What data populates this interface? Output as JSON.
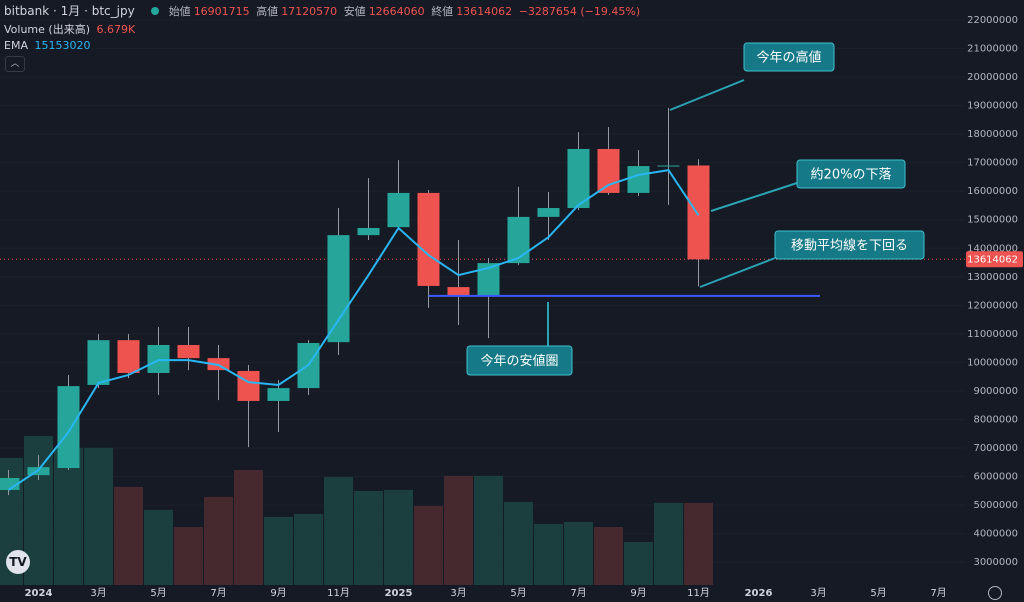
{
  "header": {
    "symbol": "bitbank · 1月 · btc_jpy",
    "open_label": "始値",
    "open": "16901715",
    "high_label": "高値",
    "high": "17120570",
    "low_label": "安値",
    "low": "12664060",
    "close_label": "終値",
    "close": "13614062",
    "change": "−3287654 (−19.45%)",
    "volume_label": "Volume (出来高)",
    "volume": "6.679K",
    "ema_label": "EMA",
    "ema": "15153020"
  },
  "chart_data": {
    "type": "candlestick",
    "categories": [
      null,
      "2024",
      null,
      "3月",
      null,
      "5月",
      null,
      "7月",
      null,
      "9月",
      null,
      "11月",
      null,
      "2025",
      null,
      "3月",
      null,
      "5月",
      null,
      "7月",
      null,
      "9月",
      null,
      "11月",
      null,
      "2026",
      null,
      "3月",
      null,
      "5月",
      null,
      "7月"
    ],
    "open": [
      5530000,
      6050000,
      6300000,
      9210000,
      10780000,
      9630000,
      10610000,
      10150000,
      9700000,
      8650000,
      9100000,
      10710000,
      14460000,
      14740000,
      15940000,
      12640000,
      12360000,
      13480000,
      15100000,
      15410000,
      17480000,
      15940000,
      16880000,
      16901715,
      null,
      null,
      null,
      null,
      null,
      null,
      null,
      null
    ],
    "high": [
      6230000,
      6750000,
      9560000,
      10990000,
      10990000,
      11240000,
      11240000,
      10610000,
      9910000,
      9380000,
      10780000,
      15410000,
      16460000,
      17090000,
      16040000,
      14290000,
      13660000,
      16150000,
      15970000,
      18070000,
      18250000,
      17440000,
      18920000,
      17120570,
      null,
      null,
      null,
      null,
      null,
      null,
      null,
      null
    ],
    "low": [
      5350000,
      5880000,
      6230000,
      9100000,
      9450000,
      8860000,
      9730000,
      8680000,
      7030000,
      7560000,
      8860000,
      10260000,
      14290000,
      14640000,
      11910000,
      11310000,
      10850000,
      13410000,
      14290000,
      15340000,
      15870000,
      15830000,
      15520000,
      12664060,
      null,
      null,
      null,
      null,
      null,
      null,
      null,
      null
    ],
    "close": [
      5950000,
      6330000,
      9170000,
      10780000,
      9630000,
      10610000,
      10150000,
      9730000,
      8650000,
      9100000,
      10680000,
      14460000,
      14710000,
      15940000,
      12680000,
      12360000,
      13480000,
      15100000,
      15410000,
      17480000,
      15940000,
      16880000,
      16900000,
      13614062,
      null,
      null,
      null,
      null,
      null,
      null,
      null,
      null
    ],
    "up_color": "#26a69a",
    "down_color": "#ef5350",
    "ema": {
      "name": "EMA",
      "color": "#29b6f6",
      "values": [
        5530000,
        6230000,
        7560000,
        9280000,
        9560000,
        10080000,
        10080000,
        9910000,
        9310000,
        9210000,
        9910000,
        11490000,
        13060000,
        14710000,
        13760000,
        13060000,
        13310000,
        13660000,
        14390000,
        15520000,
        16220000,
        16570000,
        16740000,
        15153020,
        null,
        null,
        null,
        null,
        null,
        null,
        null,
        null
      ]
    },
    "volume": {
      "name": "Volume (出来高)",
      "values": [
        10340,
        12130,
        11160,
        11160,
        7980,
        6110,
        4720,
        7170,
        9360,
        5540,
        5780,
        8790,
        7650,
        7740,
        6430,
        8880,
        8880,
        6760,
        4970,
        5130,
        4720,
        3500,
        6680,
        6679,
        null,
        null,
        null,
        null,
        null,
        null,
        null,
        null
      ],
      "up_color": "#1b3f3f",
      "down_color": "#45292e",
      "ylim": [
        0,
        47600
      ]
    },
    "ylim": [
      2200000,
      22700000
    ],
    "yticks": [
      3000000,
      4000000,
      5000000,
      6000000,
      7000000,
      8000000,
      9000000,
      10000000,
      11000000,
      12000000,
      13000000,
      14000000,
      15000000,
      16000000,
      17000000,
      18000000,
      19000000,
      20000000,
      21000000,
      22000000
    ],
    "support_level": {
      "value": 12330000,
      "color": "#3d5afe"
    },
    "annotations": [
      "今年の高値",
      "約20%の下落",
      "移動平均線を下回る",
      "今年の安値圏"
    ]
  }
}
